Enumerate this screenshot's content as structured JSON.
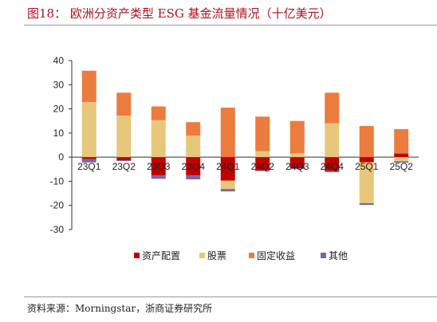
{
  "title": "图18： 欧洲分资产类型 ESG 基金流量情况（十亿美元）",
  "source": "资料来源：Morningstar，浙商证券研究所",
  "colors": {
    "资产配置": "#c00000",
    "股票": "#e6c77c",
    "固定收益": "#ec7c3d",
    "其他": "#8064a2"
  },
  "chart_data": {
    "type": "bar",
    "stacked": true,
    "categories": [
      "23Q1",
      "23Q2",
      "23Q3",
      "23Q4",
      "24Q1",
      "24Q2",
      "24Q3",
      "24Q4",
      "25Q1",
      "25Q2"
    ],
    "series": [
      {
        "name": "资产配置",
        "values": [
          -0.8,
          -1.3,
          -7.6,
          -7.6,
          -9.7,
          -5.5,
          -4.6,
          -5.7,
          -2.1,
          1.5
        ]
      },
      {
        "name": "股票",
        "values": [
          22.8,
          17.2,
          15.3,
          8.9,
          -3.5,
          2.5,
          1.6,
          14.0,
          -17.0,
          -1.7
        ]
      },
      {
        "name": "固定收益",
        "values": [
          13.0,
          9.5,
          5.7,
          5.6,
          20.5,
          14.3,
          13.4,
          12.7,
          12.9,
          10.1
        ]
      },
      {
        "name": "其他",
        "values": [
          -1.4,
          -0.3,
          -1.4,
          -1.6,
          -1.0,
          -0.3,
          -0.4,
          -0.5,
          -0.7,
          -0.6
        ]
      }
    ],
    "ylim": [
      -30,
      40
    ],
    "yticks": [
      -30,
      -20,
      -10,
      0,
      10,
      20,
      30,
      40
    ],
    "grid": false,
    "legend": "bottom"
  }
}
